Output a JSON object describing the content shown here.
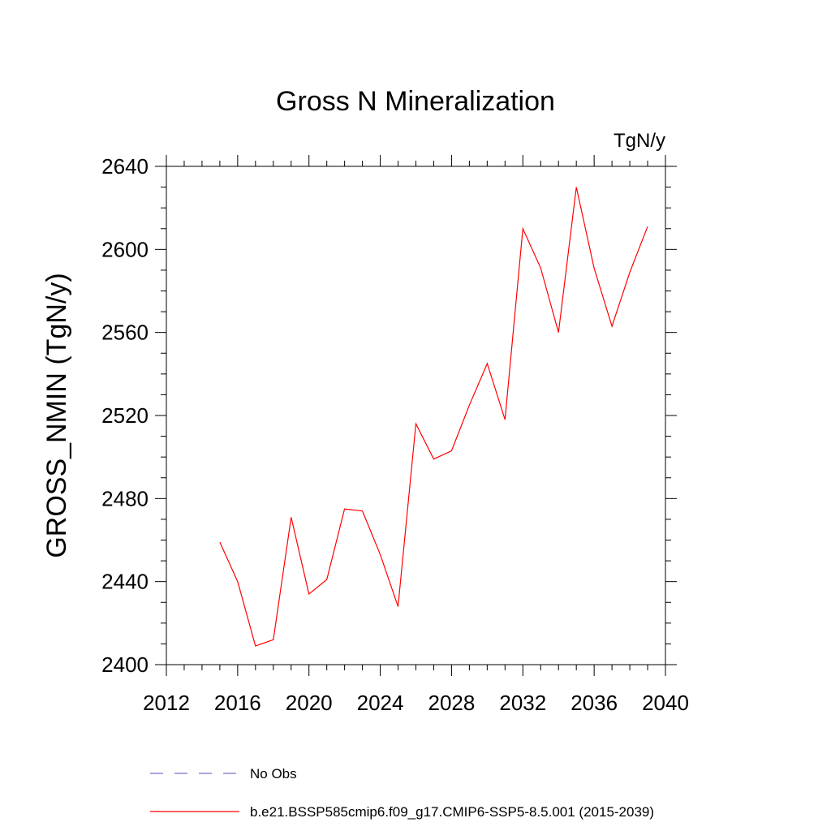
{
  "chart_data": {
    "type": "line",
    "title": "Gross N Mineralization",
    "units_label": "TgN/y",
    "ylabel": "GROSS_NMIN  (TgN/y)",
    "xlabel": "",
    "xlim": [
      2012,
      2040
    ],
    "ylim": [
      2400,
      2640
    ],
    "x_ticks": [
      2012,
      2016,
      2020,
      2024,
      2028,
      2032,
      2036,
      2040
    ],
    "y_ticks": [
      2400,
      2440,
      2480,
      2520,
      2560,
      2600,
      2640
    ],
    "grid": false,
    "legend_position": "bottom",
    "series": [
      {
        "name": "b.e21.BSSP585cmip6.f09_g17.CMIP6-SSP5-8.5.001 (2015-2039)",
        "color": "#ff0000",
        "style": "solid",
        "x": [
          2015,
          2016,
          2017,
          2018,
          2019,
          2020,
          2021,
          2022,
          2023,
          2024,
          2025,
          2026,
          2027,
          2028,
          2029,
          2030,
          2031,
          2032,
          2033,
          2034,
          2035,
          2036,
          2037,
          2038,
          2039
        ],
        "values": [
          2459,
          2440,
          2409,
          2412,
          2471,
          2434,
          2441,
          2475,
          2474,
          2453,
          2428,
          2516,
          2499,
          2503,
          2525,
          2545,
          2518,
          2610,
          2591,
          2560,
          2630,
          2591,
          2563,
          2589,
          2611
        ]
      },
      {
        "name": "No Obs",
        "color": "#7b6fc8",
        "style": "dashed",
        "x": [],
        "values": []
      }
    ]
  }
}
